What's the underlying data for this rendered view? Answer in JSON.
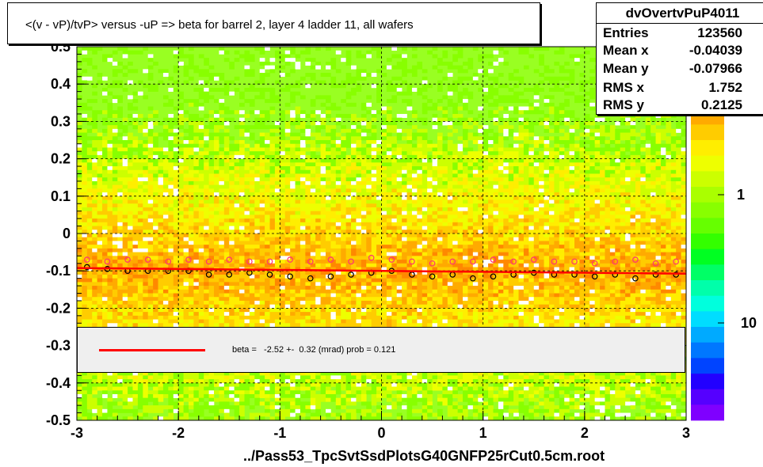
{
  "title": "<(v - vP)/tvP> versus  -uP => beta for barrel 2, layer 4 ladder 11, all wafers",
  "stats": {
    "name": "dvOvertvPuP4011",
    "rows": [
      {
        "key": "Entries",
        "value": "123560"
      },
      {
        "key": "Mean x",
        "value": "-0.04039"
      },
      {
        "key": "Mean y",
        "value": "-0.07966"
      },
      {
        "key": "RMS x",
        "value": "1.752"
      },
      {
        "key": "RMS y",
        "value": "0.2125"
      }
    ]
  },
  "fit": {
    "text": "beta =   -2.52 +-  0.32 (mrad) prob = 0.121",
    "color": "#ff0000"
  },
  "footer": "../Pass53_TpcSvtSsdPlotsG40GNFP25rCut0.5cm.root",
  "colors": {
    "palette_low": "#7f00ff",
    "palette_high": "#ff0000",
    "profile_black": "#000000",
    "profile_pink": "#ff3377",
    "fit_line": "#ff0000"
  },
  "chart_data": {
    "type": "heatmap",
    "xlim": [
      -3,
      3
    ],
    "ylim": [
      -0.5,
      0.5
    ],
    "x_ticks": [
      "-3",
      "-2",
      "-1",
      "0",
      "1",
      "2",
      "3"
    ],
    "y_ticks": [
      "-0.5",
      "-0.4",
      "-0.3",
      "-0.2",
      "-0.1",
      "0",
      "0.1",
      "0.2",
      "0.3",
      "0.4",
      "0.5"
    ],
    "z_scale": "log",
    "z_ticks": [
      "1",
      "10"
    ],
    "grid": true,
    "fit": {
      "function": "linear",
      "intercept": -0.1,
      "slope": -0.0025
    },
    "series": [
      {
        "marker": "open-circle",
        "color": "#000000",
        "x": [
          -2.9,
          -2.7,
          -2.5,
          -2.3,
          -2.1,
          -1.9,
          -1.7,
          -1.5,
          -1.3,
          -1.1,
          -0.9,
          -0.7,
          -0.5,
          -0.3,
          -0.1,
          0.1,
          0.3,
          0.5,
          0.7,
          0.9,
          1.1,
          1.3,
          1.5,
          1.7,
          1.9,
          2.1,
          2.3,
          2.5,
          2.7,
          2.9
        ],
        "y": [
          -0.09,
          -0.095,
          -0.1,
          -0.1,
          -0.1,
          -0.1,
          -0.11,
          -0.11,
          -0.105,
          -0.11,
          -0.115,
          -0.12,
          -0.115,
          -0.11,
          -0.105,
          -0.1,
          -0.11,
          -0.115,
          -0.11,
          -0.12,
          -0.115,
          -0.11,
          -0.105,
          -0.11,
          -0.11,
          -0.115,
          -0.11,
          -0.12,
          -0.11,
          -0.11
        ]
      },
      {
        "marker": "open-circle",
        "color": "#ff3377",
        "x": [
          -2.9,
          -2.7,
          -2.5,
          -2.3,
          -2.1,
          -1.9,
          -1.7,
          -1.5,
          -1.3,
          -1.1,
          -0.9,
          -0.7,
          -0.5,
          -0.3,
          -0.1,
          0.1,
          0.3,
          0.5,
          0.7,
          0.9,
          1.1,
          1.3,
          1.5,
          1.7,
          1.9,
          2.1,
          2.3,
          2.5,
          2.7,
          2.9
        ],
        "y": [
          -0.07,
          -0.075,
          -0.07,
          -0.07,
          -0.075,
          -0.07,
          -0.075,
          -0.07,
          -0.075,
          -0.075,
          -0.07,
          -0.075,
          -0.07,
          -0.075,
          -0.065,
          -0.07,
          -0.075,
          -0.08,
          -0.075,
          -0.075,
          -0.07,
          -0.075,
          -0.07,
          -0.075,
          -0.075,
          -0.08,
          -0.075,
          -0.07,
          -0.08,
          -0.075
        ]
      }
    ]
  }
}
